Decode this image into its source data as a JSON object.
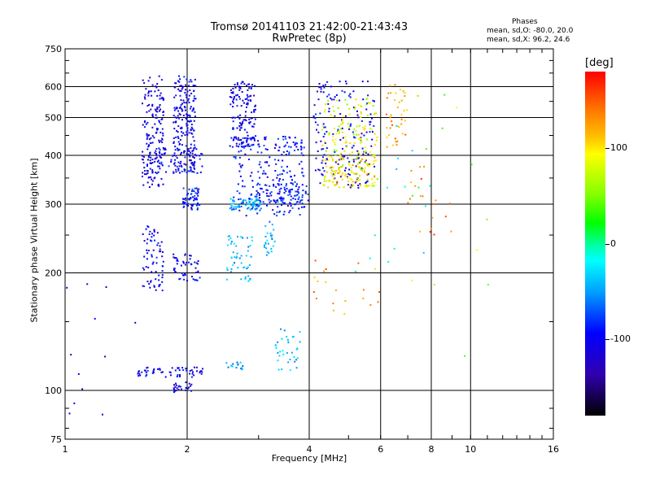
{
  "chart_data": {
    "type": "scatter",
    "title": "Tromsø 20141103 21:42:00-21:43:43",
    "subtitle": "RwPretec (8p)",
    "xlabel": "Frequency [MHz]",
    "ylabel": "Stationary phase Virtual Height [km]",
    "x_scale": "log",
    "y_scale": "log",
    "xlim": [
      1,
      16
    ],
    "ylim": [
      75,
      750
    ],
    "x_ticks": [
      "1",
      "2",
      "4",
      "6",
      "8",
      "10",
      "16"
    ],
    "y_ticks": [
      "75",
      "100",
      "200",
      "300",
      "400",
      "500",
      "600",
      "750"
    ],
    "grid": true,
    "phase_stats": {
      "heading": "Phases",
      "o_line": "mean, sd,O: -80.0, 20.0",
      "x_line": "mean, sd,X:  96.2, 24.6"
    },
    "colorbar": {
      "label": "[deg]",
      "ticks": [
        "100",
        "0",
        "-100"
      ],
      "range": [
        -180,
        180
      ]
    },
    "clusters": [
      {
        "fmin": 1.55,
        "fmax": 1.75,
        "hmin": 330,
        "hmax": 640,
        "phase": -115,
        "n": 160
      },
      {
        "fmin": 1.85,
        "fmax": 2.1,
        "hmin": 360,
        "hmax": 640,
        "phase": -110,
        "n": 200
      },
      {
        "fmin": 1.6,
        "fmax": 2.2,
        "hmin": 360,
        "hmax": 420,
        "phase": -105,
        "n": 80
      },
      {
        "fmin": 2.55,
        "fmax": 2.95,
        "hmin": 420,
        "hmax": 620,
        "phase": -110,
        "n": 140
      },
      {
        "fmin": 1.95,
        "fmax": 2.15,
        "hmin": 290,
        "hmax": 330,
        "phase": -95,
        "n": 60
      },
      {
        "fmin": 2.55,
        "fmax": 3.1,
        "hmin": 290,
        "hmax": 310,
        "phase": -55,
        "n": 70
      },
      {
        "fmin": 2.6,
        "fmax": 3.9,
        "hmin": 280,
        "hmax": 450,
        "phase": -100,
        "n": 220
      },
      {
        "fmin": 3.0,
        "fmax": 4.0,
        "hmin": 300,
        "hmax": 340,
        "phase": -95,
        "n": 80
      },
      {
        "fmin": 4.1,
        "fmax": 5.8,
        "hmin": 330,
        "hmax": 620,
        "phase": -110,
        "n": 180
      },
      {
        "fmin": 4.3,
        "fmax": 5.9,
        "hmin": 330,
        "hmax": 560,
        "phase": 100,
        "n": 180
      },
      {
        "fmin": 4.4,
        "fmax": 5.8,
        "hmin": 330,
        "hmax": 400,
        "phase": 125,
        "n": 60
      },
      {
        "fmin": 6.2,
        "fmax": 7.0,
        "hmin": 420,
        "hmax": 620,
        "phase": 140,
        "n": 40
      },
      {
        "fmin": 1.55,
        "fmax": 1.75,
        "hmin": 180,
        "hmax": 265,
        "phase": -110,
        "n": 70
      },
      {
        "fmin": 1.85,
        "fmax": 2.15,
        "hmin": 190,
        "hmax": 225,
        "phase": -110,
        "n": 50
      },
      {
        "fmin": 2.5,
        "fmax": 2.9,
        "hmin": 190,
        "hmax": 250,
        "phase": -50,
        "n": 50
      },
      {
        "fmin": 3.1,
        "fmax": 3.3,
        "hmin": 220,
        "hmax": 280,
        "phase": -55,
        "n": 25
      },
      {
        "fmin": 3.3,
        "fmax": 3.8,
        "hmin": 112,
        "hmax": 145,
        "phase": -45,
        "n": 35
      },
      {
        "fmin": 1.5,
        "fmax": 2.2,
        "hmin": 108,
        "hmax": 115,
        "phase": -110,
        "n": 60
      },
      {
        "fmin": 1.85,
        "fmax": 2.05,
        "hmin": 99,
        "hmax": 105,
        "phase": -115,
        "n": 25
      },
      {
        "fmin": 2.5,
        "fmax": 2.75,
        "hmin": 113,
        "hmax": 118,
        "phase": -55,
        "n": 15
      },
      {
        "fmin": 4.0,
        "fmax": 6.0,
        "hmin": 150,
        "hmax": 220,
        "phase": 140,
        "n": 20
      },
      {
        "fmin": 7.0,
        "fmax": 9.0,
        "hmin": 250,
        "hmax": 380,
        "phase": 150,
        "n": 20
      },
      {
        "fmin": 1.0,
        "fmax": 1.5,
        "hmin": 80,
        "hmax": 190,
        "phase": -120,
        "n": 12
      },
      {
        "fmin": 7.0,
        "fmax": 12.5,
        "hmin": 100,
        "hmax": 620,
        "phase": 80,
        "n": 14
      },
      {
        "fmin": 5.0,
        "fmax": 8.0,
        "hmin": 180,
        "hmax": 500,
        "phase": -20,
        "n": 14
      }
    ]
  }
}
